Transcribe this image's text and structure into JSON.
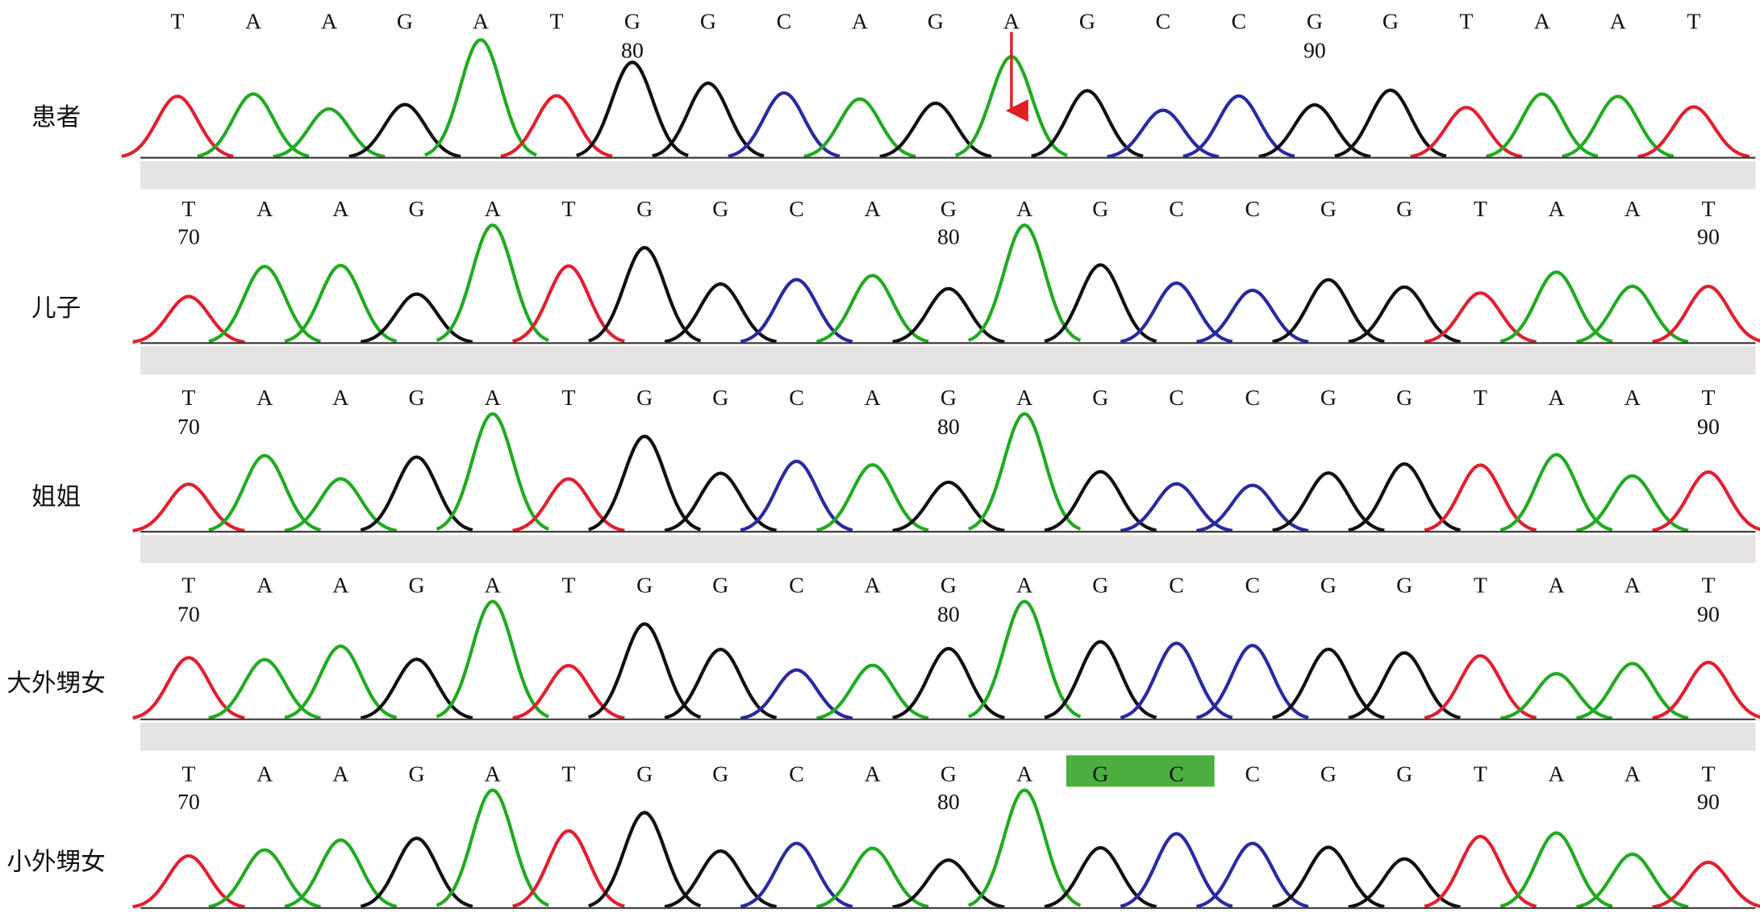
{
  "panels": [
    {
      "label": "患者",
      "bases": [
        "T",
        "A",
        "A",
        "G",
        "A",
        "T",
        "G",
        "G",
        "C",
        "A",
        "G",
        "A",
        "G",
        "C",
        "C",
        "G",
        "G",
        "T",
        "A",
        "A",
        "T"
      ],
      "positions": [
        null,
        null,
        null,
        null,
        null,
        null,
        80,
        null,
        null,
        null,
        null,
        null,
        null,
        null,
        null,
        90,
        null,
        null,
        null,
        null,
        null
      ]
    },
    {
      "label": "儿子",
      "bases": [
        "T",
        "A",
        "A",
        "G",
        "A",
        "T",
        "G",
        "G",
        "C",
        "A",
        "G",
        "A",
        "G",
        "C",
        "C",
        "G",
        "G",
        "T",
        "A",
        "A",
        "T"
      ],
      "positions": [
        70,
        null,
        null,
        null,
        null,
        null,
        null,
        null,
        null,
        null,
        80,
        null,
        null,
        null,
        null,
        null,
        null,
        null,
        null,
        null,
        90
      ]
    },
    {
      "label": "姐姐",
      "bases": [
        "T",
        "A",
        "A",
        "G",
        "A",
        "T",
        "G",
        "G",
        "C",
        "A",
        "G",
        "A",
        "G",
        "C",
        "C",
        "G",
        "G",
        "T",
        "A",
        "A",
        "T"
      ],
      "positions": [
        70,
        null,
        null,
        null,
        null,
        null,
        null,
        null,
        null,
        null,
        80,
        null,
        null,
        null,
        null,
        null,
        null,
        null,
        null,
        null,
        90
      ]
    },
    {
      "label": "大外甥女",
      "bases": [
        "T",
        "A",
        "A",
        "G",
        "A",
        "T",
        "G",
        "G",
        "C",
        "A",
        "G",
        "A",
        "G",
        "C",
        "C",
        "G",
        "G",
        "T",
        "A",
        "A",
        "T"
      ],
      "positions": [
        70,
        null,
        null,
        null,
        null,
        null,
        null,
        null,
        null,
        null,
        80,
        null,
        null,
        null,
        null,
        null,
        null,
        null,
        null,
        null,
        90
      ]
    },
    {
      "label": "小外甥女",
      "bases": [
        "T",
        "A",
        "A",
        "G",
        "A",
        "T",
        "G",
        "G",
        "C",
        "A",
        "G",
        "A",
        "G",
        "C",
        "C",
        "G",
        "G",
        "T",
        "A",
        "A",
        "T"
      ],
      "positions": [
        70,
        null,
        null,
        null,
        null,
        null,
        null,
        null,
        null,
        null,
        80,
        null,
        null,
        null,
        null,
        null,
        null,
        null,
        null,
        null,
        90
      ]
    }
  ]
}
